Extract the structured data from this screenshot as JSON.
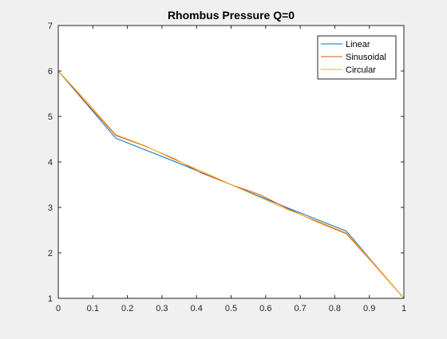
{
  "chart_data": {
    "type": "line",
    "title": "Rhombus Pressure Q=0",
    "xlabel": "",
    "ylabel": "",
    "xlim": [
      0,
      1
    ],
    "ylim": [
      1,
      7
    ],
    "x_ticks": [
      "0",
      "0.1",
      "0.2",
      "0.3",
      "0.4",
      "0.5",
      "0.6",
      "0.7",
      "0.8",
      "0.9",
      "1"
    ],
    "y_ticks": [
      "1",
      "2",
      "3",
      "4",
      "5",
      "6",
      "7"
    ],
    "grid": false,
    "legend_position": "top-right",
    "series": [
      {
        "name": "Linear",
        "color": "#0072BD",
        "x": [
          0,
          0.1667,
          0.3333,
          0.5,
          0.6667,
          0.8333,
          1
        ],
        "y": [
          6.0,
          4.52,
          4.02,
          3.5,
          2.98,
          2.48,
          1.0
        ]
      },
      {
        "name": "Sinusoidal",
        "color": "#D95319",
        "x": [
          0,
          0.0833,
          0.1667,
          0.25,
          0.3333,
          0.4167,
          0.5,
          0.5833,
          0.6667,
          0.75,
          0.8333,
          0.9167,
          1
        ],
        "y": [
          6.0,
          5.28,
          4.58,
          4.35,
          4.08,
          3.75,
          3.5,
          3.28,
          2.96,
          2.68,
          2.42,
          1.72,
          1.0
        ]
      },
      {
        "name": "Circular",
        "color": "#EDB120",
        "x": [
          0,
          0.0833,
          0.1667,
          0.25,
          0.3333,
          0.4167,
          0.5,
          0.5833,
          0.6667,
          0.75,
          0.8333,
          0.9167,
          1
        ],
        "y": [
          6.0,
          5.32,
          4.6,
          4.36,
          4.06,
          3.79,
          3.5,
          3.22,
          2.94,
          2.7,
          2.44,
          1.74,
          1.0
        ]
      }
    ]
  }
}
